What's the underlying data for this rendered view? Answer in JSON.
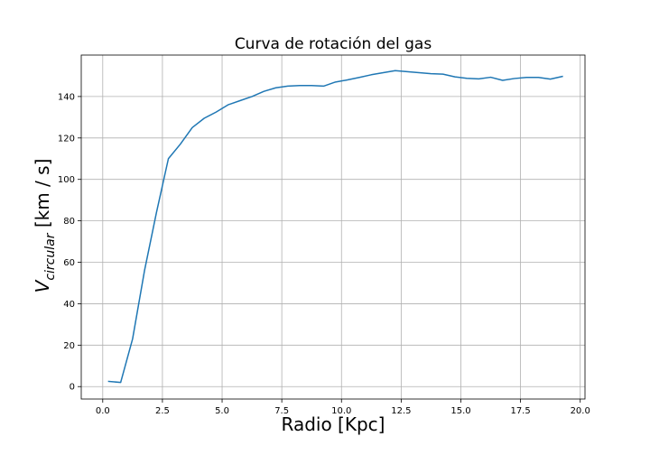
{
  "chart_data": {
    "type": "line",
    "title": "Curva de rotación del gas",
    "xlabel": "Radio [Kpc]",
    "ylabel": {
      "prefix": "V",
      "subscript": "circular",
      "suffix": " [km / s]"
    },
    "xlim": [
      -0.9,
      20.2
    ],
    "ylim": [
      -6,
      160
    ],
    "xticks": [
      0.0,
      2.5,
      5.0,
      7.5,
      10.0,
      12.5,
      15.0,
      17.5,
      20.0
    ],
    "xtick_labels": [
      "0.0",
      "2.5",
      "5.0",
      "7.5",
      "10.0",
      "12.5",
      "15.0",
      "17.5",
      "20.0"
    ],
    "yticks": [
      0,
      20,
      40,
      60,
      80,
      100,
      120,
      140
    ],
    "ytick_labels": [
      "0",
      "20",
      "40",
      "60",
      "80",
      "100",
      "120",
      "140"
    ],
    "grid": true,
    "series": [
      {
        "color": "#1f77b4",
        "x": [
          0.25,
          0.75,
          1.25,
          1.75,
          2.25,
          2.75,
          3.25,
          3.75,
          4.25,
          4.75,
          5.25,
          5.75,
          6.25,
          6.75,
          7.25,
          7.75,
          8.25,
          8.75,
          9.25,
          9.75,
          10.25,
          10.75,
          11.25,
          11.75,
          12.25,
          12.75,
          13.25,
          13.75,
          14.25,
          14.75,
          15.25,
          15.75,
          16.25,
          16.75,
          17.25,
          17.75,
          18.25,
          18.75,
          19.25
        ],
        "y": [
          2.5,
          2,
          23,
          56,
          84,
          110,
          117,
          125,
          129.5,
          132.5,
          136,
          138,
          140,
          142.5,
          144.2,
          145,
          145.3,
          145.3,
          145,
          147,
          148,
          149.2,
          150.5,
          151.5,
          152.5,
          152,
          151.5,
          151,
          150.8,
          149.5,
          148.8,
          148.5,
          149.3,
          147.8,
          148.7,
          149.2,
          149.2,
          148.4,
          149.7
        ]
      }
    ]
  }
}
